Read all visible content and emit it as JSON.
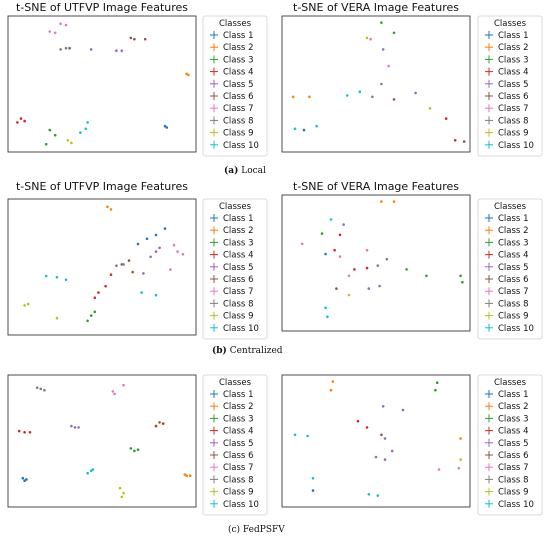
{
  "colors": [
    "#1f77b4",
    "#ff7f0e",
    "#2ca02c",
    "#d62728",
    "#9467bd",
    "#8c564b",
    "#e377c2",
    "#7f7f7f",
    "#bcbd22",
    "#17becf"
  ],
  "legend": {
    "title": "Classes",
    "labels": [
      "Class 1",
      "Class 2",
      "Class 3",
      "Class 4",
      "Class 5",
      "Class 6",
      "Class 7",
      "Class 8",
      "Class 9",
      "Class 10"
    ]
  },
  "captions": {
    "a_tag": "(a)",
    "a_text": "Local",
    "b_tag": "(b)",
    "b_text": "Centralized",
    "c_text": "(c) FedPSFV"
  },
  "chart_data": [
    {
      "type": "scatter",
      "title": "t-SNE of UTFVP Image Features",
      "xlabel": "",
      "ylabel": "",
      "xlim": [
        0,
        100
      ],
      "ylim": [
        0,
        100
      ],
      "grid": false,
      "legend": "right",
      "series": [
        {
          "name": "Class 1",
          "points": [
            [
              85,
              17
            ],
            [
              86,
              16
            ]
          ]
        },
        {
          "name": "Class 2",
          "points": [
            [
              97,
              58
            ],
            [
              98,
              57
            ]
          ]
        },
        {
          "name": "Class 3",
          "points": [
            [
              21,
              14
            ],
            [
              24,
              10
            ],
            [
              19,
              3
            ]
          ]
        },
        {
          "name": "Class 4",
          "points": [
            [
              5,
              23
            ],
            [
              7,
              21
            ],
            [
              3,
              20
            ]
          ]
        },
        {
          "name": "Class 5",
          "points": [
            [
              58,
              76
            ],
            [
              61,
              76
            ],
            [
              44,
              77
            ]
          ]
        },
        {
          "name": "Class 6",
          "points": [
            [
              66,
              86
            ],
            [
              68,
              85
            ],
            [
              74,
              85
            ],
            [
              32,
              78
            ]
          ]
        },
        {
          "name": "Class 7",
          "points": [
            [
              27,
              97
            ],
            [
              30,
              96
            ],
            [
              21,
              91
            ],
            [
              24,
              90
            ]
          ]
        },
        {
          "name": "Class 8",
          "points": [
            [
              30,
              78
            ],
            [
              27,
              77
            ]
          ]
        },
        {
          "name": "Class 9",
          "points": [
            [
              31,
              6
            ],
            [
              33,
              4
            ]
          ]
        },
        {
          "name": "Class 10",
          "points": [
            [
              38,
              12
            ],
            [
              41,
              15
            ],
            [
              42,
              20
            ]
          ]
        }
      ]
    },
    {
      "type": "scatter",
      "title": "t-SNE of VERA Image Features",
      "xlabel": "",
      "ylabel": "",
      "xlim": [
        0,
        100
      ],
      "ylim": [
        0,
        100
      ],
      "grid": false,
      "legend": "right",
      "series": [
        {
          "name": "Class 1",
          "points": [
            [
              10,
              14
            ]
          ]
        },
        {
          "name": "Class 2",
          "points": [
            [
              4,
              40
            ],
            [
              13,
              40
            ]
          ]
        },
        {
          "name": "Class 3",
          "points": [
            [
              53,
              98
            ],
            [
              60,
              90
            ]
          ]
        },
        {
          "name": "Class 4",
          "points": [
            [
              94,
              6
            ],
            [
              89,
              23
            ]
          ]
        },
        {
          "name": "Class 5",
          "points": [
            [
              54,
              77
            ],
            [
              72,
              43
            ]
          ]
        },
        {
          "name": "Class 6",
          "points": [
            [
              60,
              38
            ],
            [
              99,
              5
            ]
          ]
        },
        {
          "name": "Class 7",
          "points": [
            [
              57,
              64
            ],
            [
              47,
              85
            ]
          ]
        },
        {
          "name": "Class 8",
          "points": [
            [
              48,
              40
            ],
            [
              53,
              50
            ]
          ]
        },
        {
          "name": "Class 9",
          "points": [
            [
              45,
              86
            ],
            [
              80,
              31
            ]
          ]
        },
        {
          "name": "Class 10",
          "points": [
            [
              5,
              15
            ],
            [
              17,
              17
            ],
            [
              34,
              41
            ],
            [
              41,
              44
            ]
          ]
        }
      ]
    },
    {
      "type": "scatter",
      "title": "t-SNE of UTFVP Image Features",
      "xlabel": "",
      "ylabel": "",
      "xlim": [
        0,
        100
      ],
      "ylim": [
        0,
        100
      ],
      "grid": false,
      "legend": "right",
      "series": [
        {
          "name": "Class 1",
          "points": [
            [
              70,
              68
            ],
            [
              75,
              72
            ],
            [
              80,
              75
            ],
            [
              85,
              80
            ]
          ]
        },
        {
          "name": "Class 2",
          "points": [
            [
              53,
              97
            ],
            [
              55,
              95
            ]
          ]
        },
        {
          "name": "Class 3",
          "points": [
            [
              42,
              8
            ],
            [
              44,
              12
            ],
            [
              46,
              15
            ]
          ]
        },
        {
          "name": "Class 4",
          "points": [
            [
              48,
              30
            ],
            [
              46,
              26
            ],
            [
              52,
              35
            ],
            [
              55,
              44
            ]
          ]
        },
        {
          "name": "Class 5",
          "points": [
            [
              77,
              58
            ],
            [
              80,
              62
            ],
            [
              82,
              65
            ],
            [
              73,
              45
            ]
          ]
        },
        {
          "name": "Class 6",
          "points": [
            [
              61,
              52
            ],
            [
              65,
              55
            ],
            [
              67,
              46
            ]
          ]
        },
        {
          "name": "Class 7",
          "points": [
            [
              92,
              62
            ],
            [
              95,
              60
            ],
            [
              90,
              67
            ],
            [
              88,
              48
            ]
          ]
        },
        {
          "name": "Class 8",
          "points": [
            [
              58,
              51
            ],
            [
              62,
              52
            ]
          ]
        },
        {
          "name": "Class 9",
          "points": [
            [
              7,
              20
            ],
            [
              9,
              21
            ],
            [
              25,
              10
            ]
          ]
        },
        {
          "name": "Class 10",
          "points": [
            [
              19,
              43
            ],
            [
              25,
              42
            ],
            [
              30,
              40
            ],
            [
              72,
              30
            ],
            [
              80,
              28
            ]
          ]
        }
      ]
    },
    {
      "type": "scatter",
      "title": "t-SNE of VERA Image Features",
      "xlabel": "",
      "ylabel": "",
      "xlim": [
        0,
        100
      ],
      "ylim": [
        0,
        100
      ],
      "grid": false,
      "legend": "right",
      "series": [
        {
          "name": "Class 1",
          "points": [
            [
              22,
              57
            ]
          ]
        },
        {
          "name": "Class 2",
          "points": [
            [
              53,
              98
            ],
            [
              60,
              98
            ]
          ]
        },
        {
          "name": "Class 3",
          "points": [
            [
              20,
              73
            ],
            [
              67,
              45
            ],
            [
              78,
              40
            ],
            [
              98,
              35
            ],
            [
              97,
              40
            ]
          ]
        },
        {
          "name": "Class 4",
          "points": [
            [
              27,
              60
            ],
            [
              30,
              72
            ],
            [
              38,
              45
            ],
            [
              45,
              46
            ]
          ]
        },
        {
          "name": "Class 5",
          "points": [
            [
              32,
              80
            ],
            [
              46,
              30
            ],
            [
              52,
              32
            ]
          ]
        },
        {
          "name": "Class 6",
          "points": [
            [
              28,
              30
            ]
          ]
        },
        {
          "name": "Class 7",
          "points": [
            [
              9,
              65
            ],
            [
              30,
              55
            ],
            [
              35,
              40
            ],
            [
              45,
              60
            ]
          ]
        },
        {
          "name": "Class 8",
          "points": [
            [
              51,
              48
            ],
            [
              56,
              53
            ]
          ]
        },
        {
          "name": "Class 9",
          "points": [
            [
              35,
              25
            ]
          ]
        },
        {
          "name": "Class 10",
          "points": [
            [
              25,
              84
            ],
            [
              22,
              15
            ],
            [
              23,
              8
            ]
          ]
        }
      ]
    },
    {
      "type": "scatter",
      "title": "",
      "xlabel": "",
      "ylabel": "",
      "xlim": [
        0,
        100
      ],
      "ylim": [
        0,
        100
      ],
      "grid": false,
      "legend": "right",
      "series": [
        {
          "name": "Class 1",
          "points": [
            [
              6,
              20
            ],
            [
              7,
              18
            ],
            [
              8,
              19
            ]
          ]
        },
        {
          "name": "Class 2",
          "points": [
            [
              96,
              23
            ],
            [
              97,
              22
            ],
            [
              99,
              22
            ]
          ]
        },
        {
          "name": "Class 3",
          "points": [
            [
              66,
              44
            ],
            [
              68,
              42
            ],
            [
              70,
              43
            ]
          ]
        },
        {
          "name": "Class 4",
          "points": [
            [
              4,
              58
            ],
            [
              7,
              57
            ],
            [
              10,
              57
            ],
            [
              80,
              62
            ],
            [
              84,
              64
            ]
          ]
        },
        {
          "name": "Class 5",
          "points": [
            [
              33,
              62
            ],
            [
              35,
              61
            ],
            [
              37,
              61
            ]
          ]
        },
        {
          "name": "Class 6",
          "points": [
            [
              82,
              65
            ]
          ]
        },
        {
          "name": "Class 7",
          "points": [
            [
              56,
              90
            ],
            [
              62,
              95
            ],
            [
              57,
              88
            ]
          ]
        },
        {
          "name": "Class 8",
          "points": [
            [
              14,
              93
            ],
            [
              16,
              92
            ],
            [
              18,
              91
            ]
          ]
        },
        {
          "name": "Class 9",
          "points": [
            [
              61,
              5
            ],
            [
              62,
              8
            ],
            [
              60,
              12
            ]
          ]
        },
        {
          "name": "Class 10",
          "points": [
            [
              42,
              24
            ],
            [
              44,
              26
            ],
            [
              45,
              27
            ]
          ]
        }
      ]
    },
    {
      "type": "scatter",
      "title": "",
      "xlabel": "",
      "ylabel": "",
      "xlim": [
        0,
        100
      ],
      "ylim": [
        0,
        100
      ],
      "grid": false,
      "legend": "right",
      "series": [
        {
          "name": "Class 1",
          "points": [
            [
              15,
              10
            ]
          ]
        },
        {
          "name": "Class 2",
          "points": [
            [
              26,
              98
            ],
            [
              25,
              91
            ],
            [
              97,
              52
            ]
          ]
        },
        {
          "name": "Class 3",
          "points": [
            [
              84,
              97
            ],
            [
              83,
              91
            ]
          ]
        },
        {
          "name": "Class 4",
          "points": [
            [
              40,
              66
            ],
            [
              45,
              61
            ]
          ]
        },
        {
          "name": "Class 5",
          "points": [
            [
              54,
              78
            ],
            [
              65,
              75
            ],
            [
              55,
              52
            ],
            [
              59,
              42
            ],
            [
              55,
              35
            ]
          ]
        },
        {
          "name": "Class 6",
          "points": [
            [
              53,
              55
            ]
          ]
        },
        {
          "name": "Class 7",
          "points": [
            [
              85,
              27
            ],
            [
              96,
              28
            ]
          ]
        },
        {
          "name": "Class 8",
          "points": [
            [
              50,
              37
            ]
          ]
        },
        {
          "name": "Class 9",
          "points": [
            [
              97,
              35
            ]
          ]
        },
        {
          "name": "Class 10",
          "points": [
            [
              5,
              55
            ],
            [
              12,
              54
            ],
            [
              15,
              20
            ],
            [
              46,
              7
            ],
            [
              51,
              6
            ]
          ]
        }
      ]
    }
  ]
}
